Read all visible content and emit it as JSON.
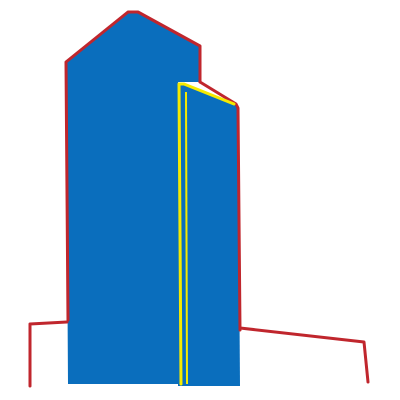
{
  "drawing": {
    "subject": "tower-illustration",
    "colors": {
      "building_fill": "#0a6ebd",
      "outline": "#c0262d",
      "accent": "#f5ea00",
      "background": "#ffffff"
    }
  }
}
